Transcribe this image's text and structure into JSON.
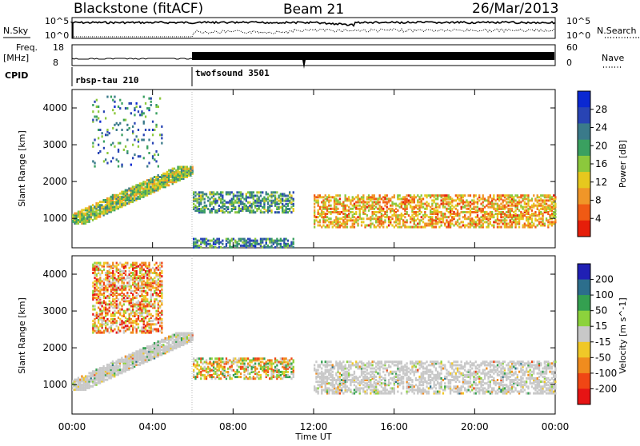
{
  "header": {
    "station": "Blackstone (fitACF)",
    "beam": "Beam 21",
    "date": "26/Mar/2013"
  },
  "top_panels": {
    "nsky_label": "N.Sky",
    "nsky_ticks": [
      "10^5",
      "10^0"
    ],
    "nsearch_label": "N.Search",
    "nsearch_ticks": [
      "10^5",
      "10^0"
    ],
    "freq_label": "Freq.",
    "freq_unit": "[MHz]",
    "freq_ticks": [
      "18",
      "8"
    ],
    "nave_label": "Nave",
    "nave_ticks": [
      "60",
      "0"
    ],
    "cpid_label": "CPID",
    "cpid_segments": [
      {
        "name": "rbsp-tau 210",
        "start_hour": 0,
        "end_hour": 6.1
      },
      {
        "name": "twofsound 3501",
        "start_hour": 6.1,
        "end_hour": 24
      }
    ]
  },
  "chart_data": [
    {
      "type": "heatmap",
      "title": "",
      "xlabel": "Time UT",
      "ylabel": "Slant Range [km]",
      "xlim": [
        0,
        24
      ],
      "ylim": [
        200,
        4500
      ],
      "x_ticks": [
        "00:00",
        "04:00",
        "08:00",
        "12:00",
        "16:00",
        "20:00",
        "00:00"
      ],
      "y_ticks": [
        "1000",
        "2000",
        "3000",
        "4000"
      ],
      "colorbar_label": "Power [dB]",
      "colorbar_ticks": [
        "28",
        "24",
        "20",
        "16",
        "12",
        "8",
        "4"
      ],
      "colorbar_range": [
        0,
        32
      ],
      "colors": [
        "#0a28d2",
        "#2844b4",
        "#3a7a8a",
        "#3aa060",
        "#8cc83c",
        "#e6c81e",
        "#f09628",
        "#f05a14",
        "#e61e0a"
      ],
      "regions": [
        {
          "t0": 0.0,
          "t1": 6.0,
          "r0": 850,
          "r1": 2400,
          "level": "mixed",
          "note_value_db": 16
        },
        {
          "t0": 1.0,
          "t1": 4.5,
          "r0": 2400,
          "r1": 4300,
          "level": "sparse",
          "note_value_db": 10
        },
        {
          "t0": 6.0,
          "t1": 11.0,
          "r0": 1150,
          "r1": 1700,
          "level": "mixed",
          "note_value_db": 12
        },
        {
          "t0": 6.0,
          "t1": 11.0,
          "r0": 200,
          "r1": 450,
          "level": "mixed",
          "note_value_db": 10
        },
        {
          "t0": 12.0,
          "t1": 24.0,
          "r0": 750,
          "r1": 1650,
          "level": "mixed",
          "note_value_db": 22
        }
      ]
    },
    {
      "type": "heatmap",
      "title": "",
      "xlabel": "Time UT",
      "ylabel": "Slant Range [km]",
      "xlim": [
        0,
        24
      ],
      "ylim": [
        200,
        4500
      ],
      "x_ticks": [
        "00:00",
        "04:00",
        "08:00",
        "12:00",
        "16:00",
        "20:00",
        "00:00"
      ],
      "y_ticks": [
        "1000",
        "2000",
        "3000",
        "4000"
      ],
      "colorbar_label": "Velocity [m s^-1]",
      "colorbar_ticks": [
        "200",
        "100",
        "50",
        "15",
        "-15",
        "-50",
        "-100",
        "-200"
      ],
      "colorbar_range": [
        -250,
        250
      ],
      "colors": [
        "#2020b4",
        "#2c6e8c",
        "#34a050",
        "#8cd23c",
        "#c8c8c8",
        "#f0c828",
        "#f08c1e",
        "#f04614",
        "#e61414"
      ],
      "regions": [
        {
          "t0": 0.0,
          "t1": 6.0,
          "r0": 850,
          "r1": 2400,
          "level": "ground_scatter",
          "note_value_ms": 0
        },
        {
          "t0": 1.0,
          "t1": 4.5,
          "r0": 2400,
          "r1": 4300,
          "level": "mixed",
          "note_value_ms": -80
        },
        {
          "t0": 6.0,
          "t1": 11.0,
          "r0": 1150,
          "r1": 1700,
          "level": "mixed",
          "note_value_ms": -30
        },
        {
          "t0": 12.0,
          "t1": 24.0,
          "r0": 750,
          "r1": 1650,
          "level": "ground_scatter",
          "note_value_ms": 0
        }
      ]
    }
  ]
}
